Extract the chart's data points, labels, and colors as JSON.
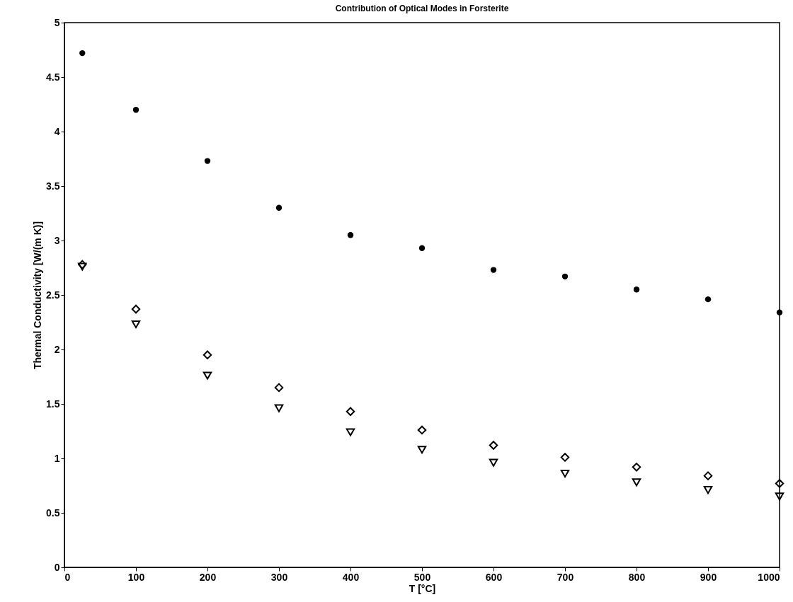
{
  "chart_data": {
    "type": "scatter",
    "title": "Contribution of Optical Modes in Forsterite",
    "xlabel": "T [°C]",
    "ylabel": "Thermal Conductivity [W/(m K)]",
    "x": [
      25,
      100,
      200,
      300,
      400,
      500,
      600,
      700,
      800,
      900,
      1000
    ],
    "series": [
      {
        "color": "#000000",
        "marker": "circle",
        "values": [
          4.72,
          4.2,
          3.73,
          3.3,
          3.05,
          2.93,
          2.73,
          2.67,
          2.55,
          2.46,
          2.34
        ]
      },
      {
        "color": "#000000",
        "marker": "diamond",
        "values": [
          2.78,
          2.37,
          1.95,
          1.65,
          1.43,
          1.26,
          1.12,
          1.01,
          0.92,
          0.84,
          0.77
        ]
      },
      {
        "color": "#000000",
        "marker": "triangle",
        "values": [
          2.76,
          2.23,
          1.76,
          1.46,
          1.24,
          1.08,
          0.96,
          0.86,
          0.78,
          0.71,
          0.65
        ]
      }
    ],
    "xlim": [
      0,
      1000
    ],
    "xticks": [
      0,
      100,
      200,
      300,
      400,
      500,
      600,
      700,
      800,
      900,
      1000
    ],
    "ylim": [
      0,
      5
    ],
    "yticks": [
      0,
      0.5,
      1,
      1.5,
      2,
      2.5,
      3,
      3.5,
      4,
      4.5,
      5
    ],
    "grid": false
  }
}
